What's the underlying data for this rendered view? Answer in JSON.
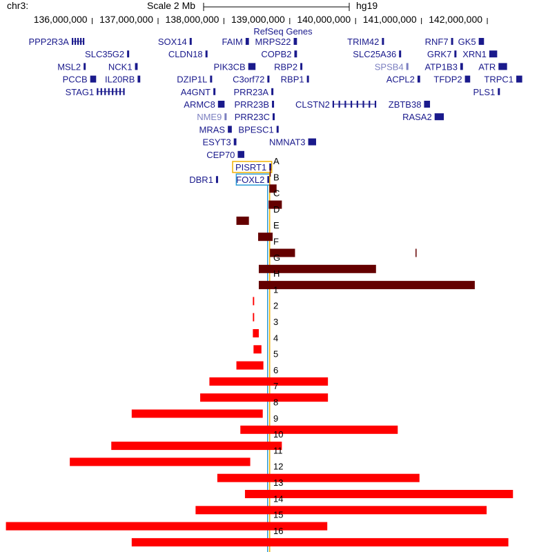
{
  "header": {
    "chrom": "chr3:",
    "scale_label": "Scale 2 Mb",
    "assembly": "hg19",
    "track_title": "RefSeq Genes"
  },
  "ruler": {
    "ticks": [
      {
        "pos": 136000000,
        "label": "136,000,000"
      },
      {
        "pos": 137000000,
        "label": "137,000,000"
      },
      {
        "pos": 138000000,
        "label": "138,000,000"
      },
      {
        "pos": 139000000,
        "label": "139,000,000"
      },
      {
        "pos": 140000000,
        "label": "140,000,000"
      },
      {
        "pos": 141000000,
        "label": "141,000,000"
      },
      {
        "pos": 142000000,
        "label": "142,000,000"
      }
    ]
  },
  "genes": [
    {
      "name": "PPP2R3A",
      "start": 135690000,
      "end": 135870000,
      "gray": false
    },
    {
      "name": "SLC35G2",
      "start": 136530000,
      "end": 136560000,
      "gray": false
    },
    {
      "name": "SOX14",
      "start": 137480000,
      "end": 137500000,
      "gray": false
    },
    {
      "name": "FAIM",
      "start": 138330000,
      "end": 138380000,
      "gray": false
    },
    {
      "name": "MRPS22",
      "start": 139060000,
      "end": 139110000,
      "gray": false
    },
    {
      "name": "TRIM42",
      "start": 140400000,
      "end": 140430000,
      "gray": false
    },
    {
      "name": "RNF7",
      "start": 141450000,
      "end": 141460000,
      "gray": false
    },
    {
      "name": "GK5",
      "start": 141870000,
      "end": 141950000,
      "gray": false
    },
    {
      "name": "MSL2",
      "start": 135870000,
      "end": 135890000,
      "gray": false
    },
    {
      "name": "NCK1",
      "start": 136650000,
      "end": 136690000,
      "gray": false
    },
    {
      "name": "CLDN18",
      "start": 137720000,
      "end": 137730000,
      "gray": false
    },
    {
      "name": "PIK3CB",
      "start": 138370000,
      "end": 138480000,
      "gray": false
    },
    {
      "name": "COPB2",
      "start": 139070000,
      "end": 139110000,
      "gray": false
    },
    {
      "name": "SLC25A36",
      "start": 140660000,
      "end": 140680000,
      "gray": false
    },
    {
      "name": "GRK7",
      "start": 141500000,
      "end": 141510000,
      "gray": false
    },
    {
      "name": "XRN1",
      "start": 142030000,
      "end": 142150000,
      "gray": false
    },
    {
      "name": "PCCB",
      "start": 135970000,
      "end": 136060000,
      "gray": false
    },
    {
      "name": "IL20RB",
      "start": 136690000,
      "end": 136730000,
      "gray": false
    },
    {
      "name": "DZIP1L",
      "start": 137790000,
      "end": 137820000,
      "gray": false
    },
    {
      "name": "C3orf72",
      "start": 138660000,
      "end": 138680000,
      "gray": false
    },
    {
      "name": "RBP2",
      "start": 139160000,
      "end": 139170000,
      "gray": false
    },
    {
      "name": "SPSB4",
      "start": 140770000,
      "end": 140800000,
      "gray": true
    },
    {
      "name": "ATP1B3",
      "start": 141590000,
      "end": 141630000,
      "gray": false
    },
    {
      "name": "ATR",
      "start": 142170000,
      "end": 142300000,
      "gray": false
    },
    {
      "name": "STAG1",
      "start": 136070000,
      "end": 136470000,
      "gray": false
    },
    {
      "name": "A4GNT",
      "start": 137840000,
      "end": 137850000,
      "gray": false
    },
    {
      "name": "PRR23A",
      "start": 138720000,
      "end": 138730000,
      "gray": false
    },
    {
      "name": "RBP1",
      "start": 139260000,
      "end": 139270000,
      "gray": false
    },
    {
      "name": "ACPL2",
      "start": 140940000,
      "end": 140980000,
      "gray": false
    },
    {
      "name": "TFDP2",
      "start": 141660000,
      "end": 141740000,
      "gray": false
    },
    {
      "name": "PLS1",
      "start": 142160000,
      "end": 142180000,
      "gray": false
    },
    {
      "name": "ARMC8",
      "start": 137910000,
      "end": 138010000,
      "gray": false
    },
    {
      "name": "PRR23B",
      "start": 138730000,
      "end": 138740000,
      "gray": false
    },
    {
      "name": "CLSTN2",
      "start": 139650000,
      "end": 140290000,
      "gray": false
    },
    {
      "name": "ZBTB38",
      "start": 141040000,
      "end": 141130000,
      "gray": false
    },
    {
      "name": "TRPC1",
      "start": 142440000,
      "end": 142530000,
      "gray": false
    },
    {
      "name": "NME9",
      "start": 138010000,
      "end": 138020000,
      "gray": true
    },
    {
      "name": "PRR23C",
      "start": 138740000,
      "end": 138750000,
      "gray": false
    },
    {
      "name": "RASA2",
      "start": 141200000,
      "end": 141340000,
      "gray": false
    },
    {
      "name": "MRAS",
      "start": 138060000,
      "end": 138120000,
      "gray": false
    },
    {
      "name": "BPESC1",
      "start": 138800000,
      "end": 138810000,
      "gray": false
    },
    {
      "name": "ESYT3",
      "start": 138150000,
      "end": 138190000,
      "gray": false
    },
    {
      "name": "NMNAT3",
      "start": 139280000,
      "end": 139400000,
      "gray": false
    },
    {
      "name": "CEP70",
      "start": 138210000,
      "end": 138310000,
      "gray": false
    },
    {
      "name": "PISRT1",
      "start": 138690000,
      "end": 138700000,
      "gray": false
    },
    {
      "name": "DBR1",
      "start": 137880000,
      "end": 137900000,
      "gray": false
    },
    {
      "name": "FOXL2",
      "start": 138660000,
      "end": 138670000,
      "gray": false
    }
  ],
  "highlights": [
    {
      "name": "FOXL2",
      "pos": 138664000,
      "color": "#2a9bd6"
    },
    {
      "name": "PISRT1",
      "pos": 138695000,
      "color": "#f0b000"
    }
  ],
  "variants": {
    "dark_color": "#640000",
    "red_color": "#ff0000",
    "items": [
      {
        "label": "A",
        "segments": [
          [
            138696000,
            138710000
          ]
        ],
        "dark": true
      },
      {
        "label": "B",
        "segments": [
          [
            138690000,
            138800000
          ]
        ],
        "dark": true
      },
      {
        "label": "C",
        "segments": [
          [
            138680000,
            138880000
          ]
        ],
        "dark": true
      },
      {
        "label": "D",
        "segments": [
          [
            138190000,
            138380000
          ]
        ],
        "dark": true
      },
      {
        "label": "E",
        "segments": [
          [
            138520000,
            138740000
          ]
        ],
        "dark": true
      },
      {
        "label": "F",
        "segments": [
          [
            138700000,
            139080000
          ],
          [
            140910000,
            140920000
          ]
        ],
        "dark": true
      },
      {
        "label": "G",
        "segments": [
          [
            138530000,
            140310000
          ]
        ],
        "dark": true
      },
      {
        "label": "H",
        "segments": [
          [
            138530000,
            141810000
          ]
        ],
        "dark": true
      },
      {
        "label": "1",
        "segments": [
          [
            138440000,
            138460000
          ]
        ],
        "dark": false
      },
      {
        "label": "2",
        "segments": [
          [
            138440000,
            138460000
          ]
        ],
        "dark": false
      },
      {
        "label": "3",
        "segments": [
          [
            138440000,
            138530000
          ]
        ],
        "dark": false
      },
      {
        "label": "4",
        "segments": [
          [
            138450000,
            138570000
          ]
        ],
        "dark": false
      },
      {
        "label": "5",
        "segments": [
          [
            138190000,
            138600000
          ]
        ],
        "dark": false
      },
      {
        "label": "6",
        "segments": [
          [
            137780000,
            139580000
          ]
        ],
        "dark": false
      },
      {
        "label": "7",
        "segments": [
          [
            137640000,
            139580000
          ]
        ],
        "dark": false
      },
      {
        "label": "8",
        "segments": [
          [
            136600000,
            138590000
          ]
        ],
        "dark": false
      },
      {
        "label": "9",
        "segments": [
          [
            138250000,
            140640000
          ]
        ],
        "dark": false
      },
      {
        "label": "10",
        "segments": [
          [
            136290000,
            138880000
          ]
        ],
        "dark": false
      },
      {
        "label": "11",
        "segments": [
          [
            135660000,
            138400000
          ]
        ],
        "dark": false
      },
      {
        "label": "12",
        "segments": [
          [
            137900000,
            140970000
          ]
        ],
        "dark": false
      },
      {
        "label": "13",
        "segments": [
          [
            138320000,
            142390000
          ]
        ],
        "dark": false
      },
      {
        "label": "14",
        "segments": [
          [
            137570000,
            141990000
          ]
        ],
        "dark": false
      },
      {
        "label": "15",
        "segments": [
          [
            134690000,
            139570000
          ]
        ],
        "dark": false
      },
      {
        "label": "16",
        "segments": [
          [
            136600000,
            142320000
          ]
        ],
        "dark": false
      }
    ]
  }
}
